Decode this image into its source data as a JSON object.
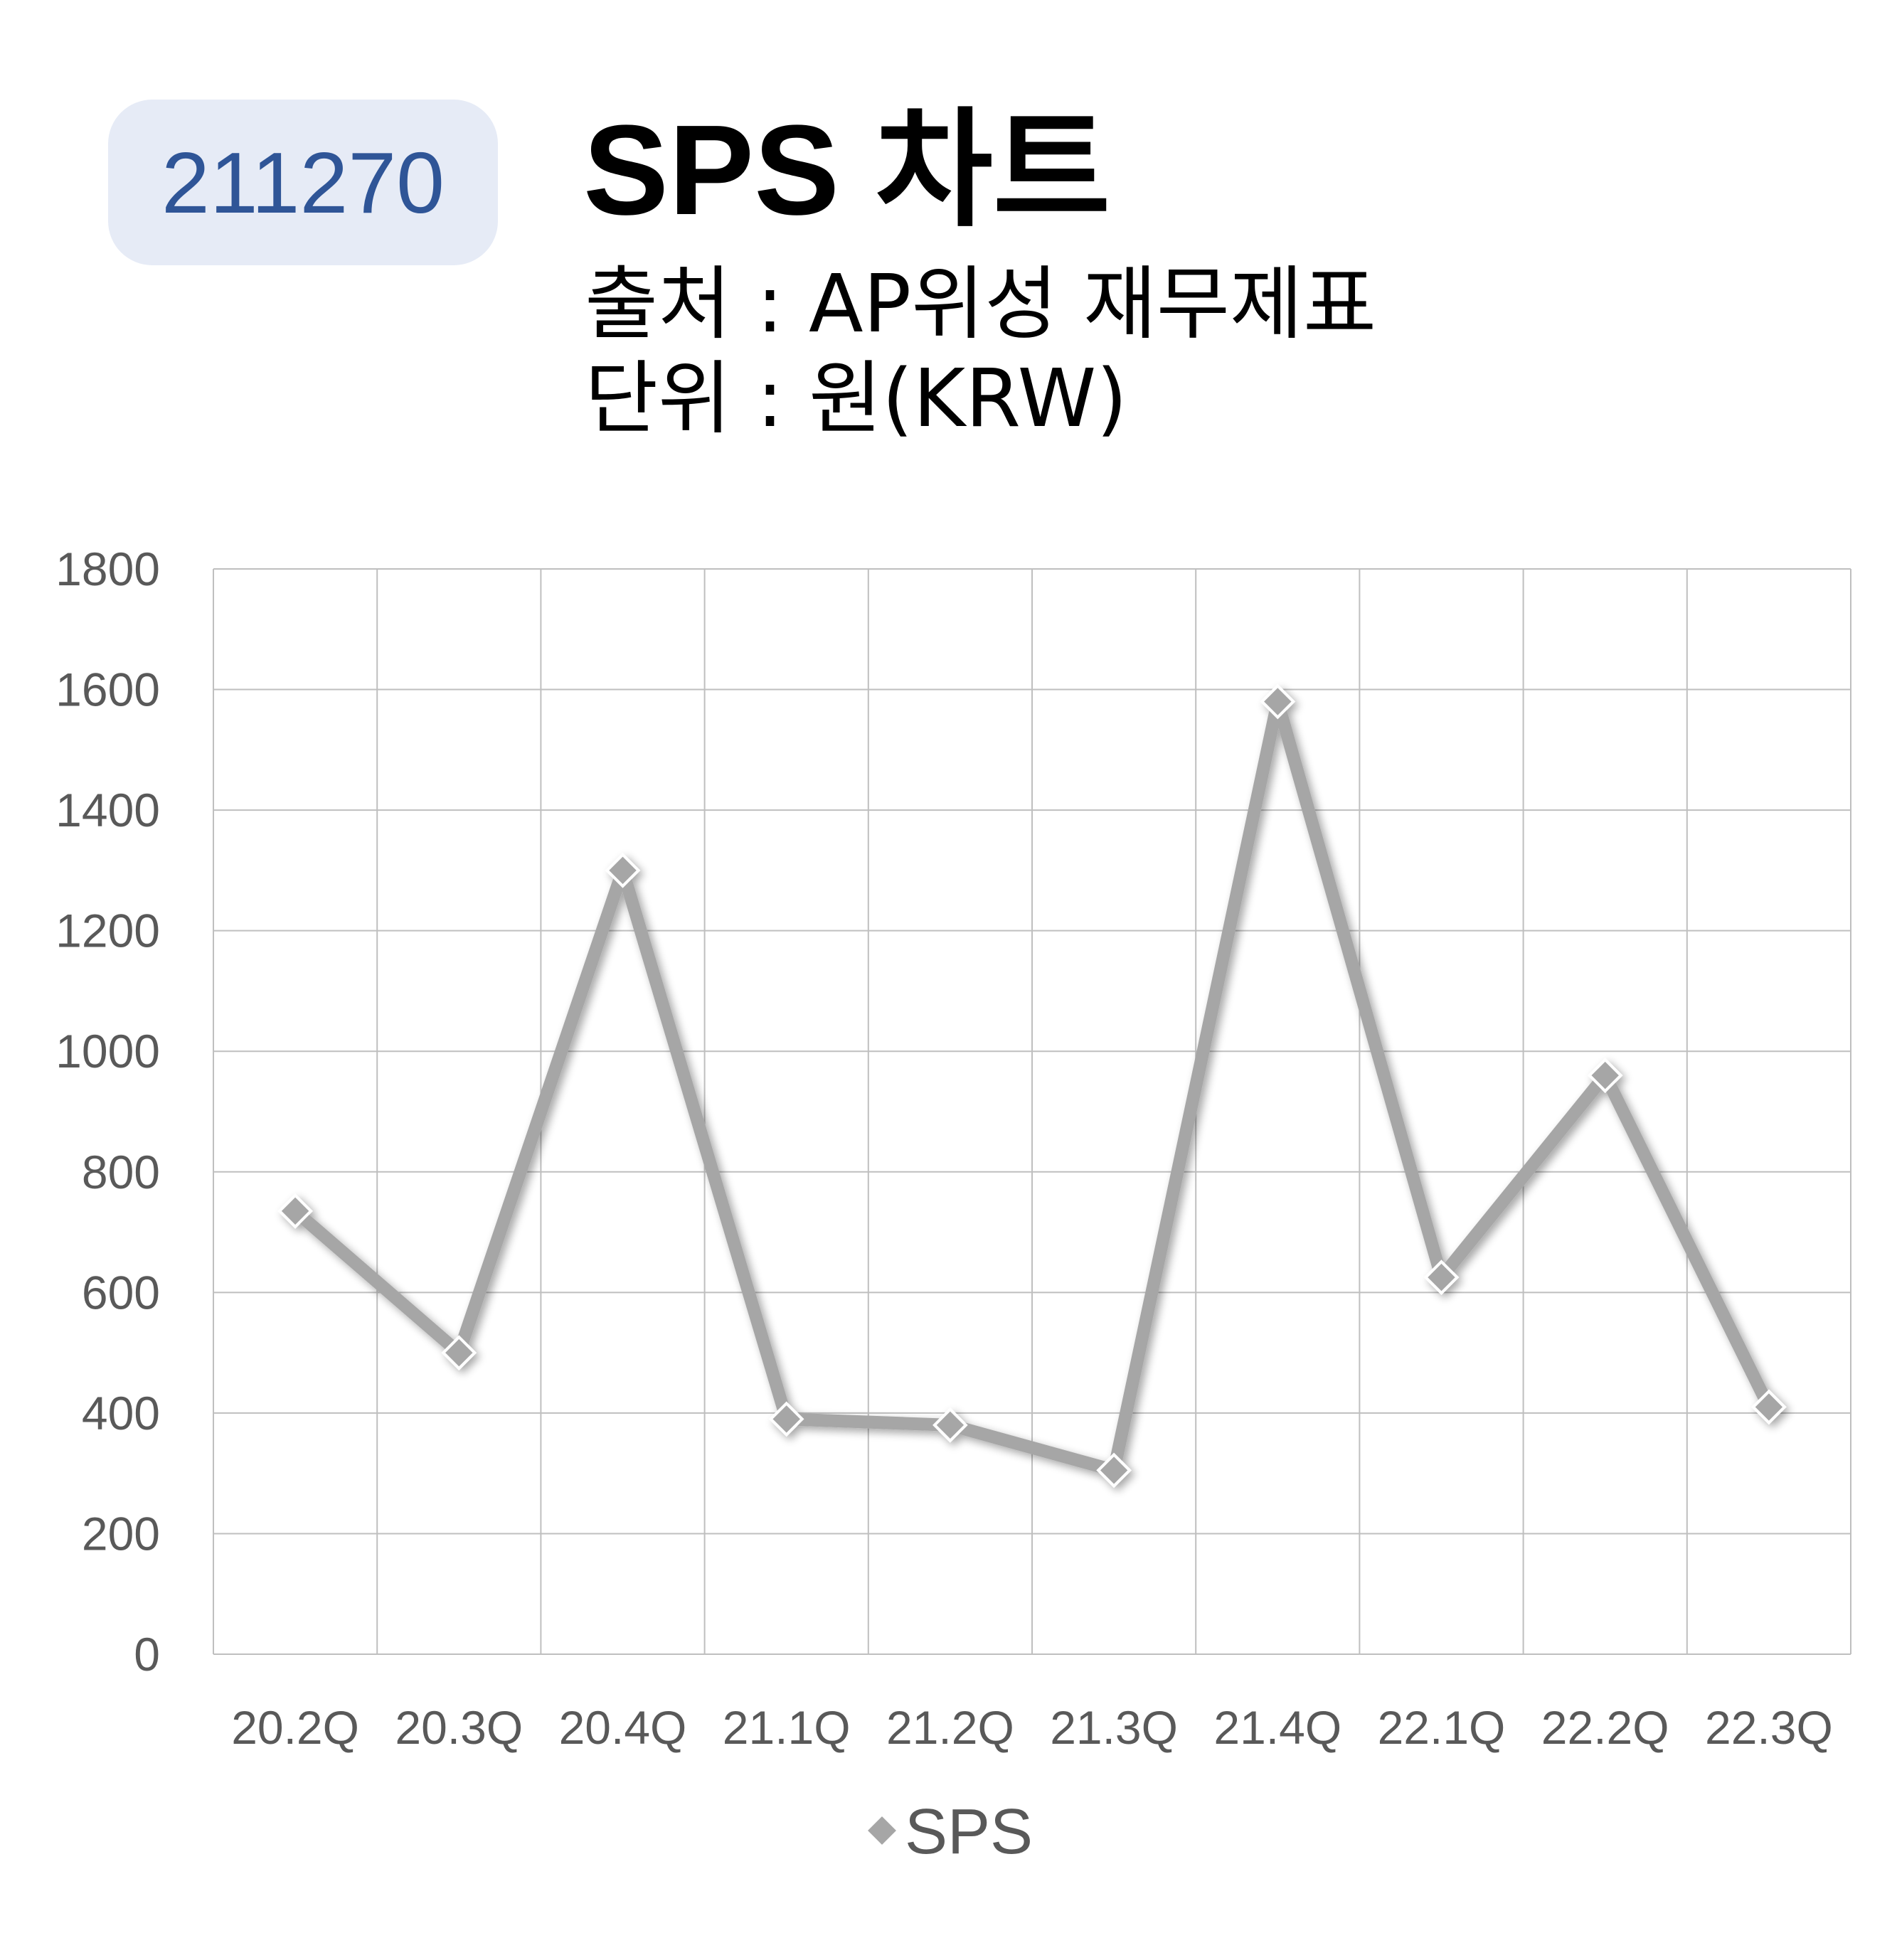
{
  "header": {
    "code": "211270",
    "title": "SPS 차트",
    "source": "출처 : AP위성 재무제표",
    "unit": "단위 : 원(KRW)"
  },
  "colors": {
    "badge_bg": "#e6ebf6",
    "badge_text": "#2f5597",
    "series_line": "#a6a6a6",
    "grid": "#bfbfbf"
  },
  "chart_data": {
    "type": "line",
    "categories": [
      "20.2Q",
      "20.3Q",
      "20.4Q",
      "21.1Q",
      "21.2Q",
      "21.3Q",
      "21.4Q",
      "22.1Q",
      "22.2Q",
      "22.3Q"
    ],
    "series": [
      {
        "name": "SPS",
        "values": [
          735,
          500,
          1300,
          390,
          380,
          305,
          1580,
          625,
          960,
          410
        ],
        "marker": "diamond"
      }
    ],
    "yticks": [
      0,
      200,
      400,
      600,
      800,
      1000,
      1200,
      1400,
      1600,
      1800
    ],
    "ylim": [
      0,
      1800
    ],
    "grid": true,
    "legend_position": "bottom"
  }
}
